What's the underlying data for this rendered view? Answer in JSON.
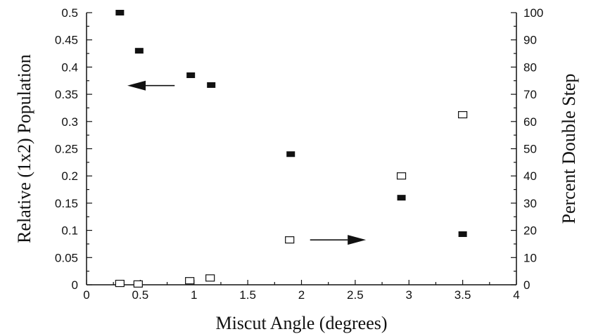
{
  "chart_data": {
    "type": "scatter",
    "title": "",
    "xlabel": "Miscut Angle (degrees)",
    "ylabel": "Relative (1x2) Population",
    "y2label": "Percent Double Step",
    "xlim": [
      0,
      4
    ],
    "ylim": [
      0,
      0.5
    ],
    "y2lim": [
      0,
      100
    ],
    "x_ticks": [
      "0",
      "0.5",
      "1",
      "1.5",
      "2",
      "2.5",
      "3",
      "3.5",
      "4"
    ],
    "y_ticks": [
      "0",
      "0.05",
      "0.1",
      "0.15",
      "0.2",
      "0.25",
      "0.3",
      "0.35",
      "0.4",
      "0.45",
      "0.5"
    ],
    "y2_ticks": [
      "0",
      "10",
      "20",
      "30",
      "40",
      "50",
      "60",
      "70",
      "80",
      "90",
      "100"
    ],
    "grid": false,
    "series": [
      {
        "axis": "left",
        "marker": "filled-square",
        "x": [
          0.31,
          0.49,
          0.97,
          1.16,
          1.9,
          2.93,
          3.5
        ],
        "y": [
          0.5,
          0.43,
          0.385,
          0.367,
          0.24,
          0.16,
          0.093
        ]
      },
      {
        "axis": "right",
        "marker": "open-square",
        "x": [
          0.31,
          0.48,
          0.96,
          1.15,
          1.89,
          2.93,
          3.5
        ],
        "y": [
          0.5,
          0.3,
          1.5,
          2.5,
          16.5,
          40,
          62.5
        ]
      }
    ],
    "annotations": [
      {
        "type": "arrow",
        "direction": "left",
        "points_to_axis": "left",
        "x_from": 0.82,
        "x_to": 0.38,
        "y": 0.366
      },
      {
        "type": "arrow",
        "direction": "right",
        "points_to_axis": "right",
        "x_from": 2.08,
        "x_to": 2.6,
        "y2": 16.5
      }
    ],
    "colors": {
      "ink": "#111111",
      "background": "#ffffff"
    }
  }
}
